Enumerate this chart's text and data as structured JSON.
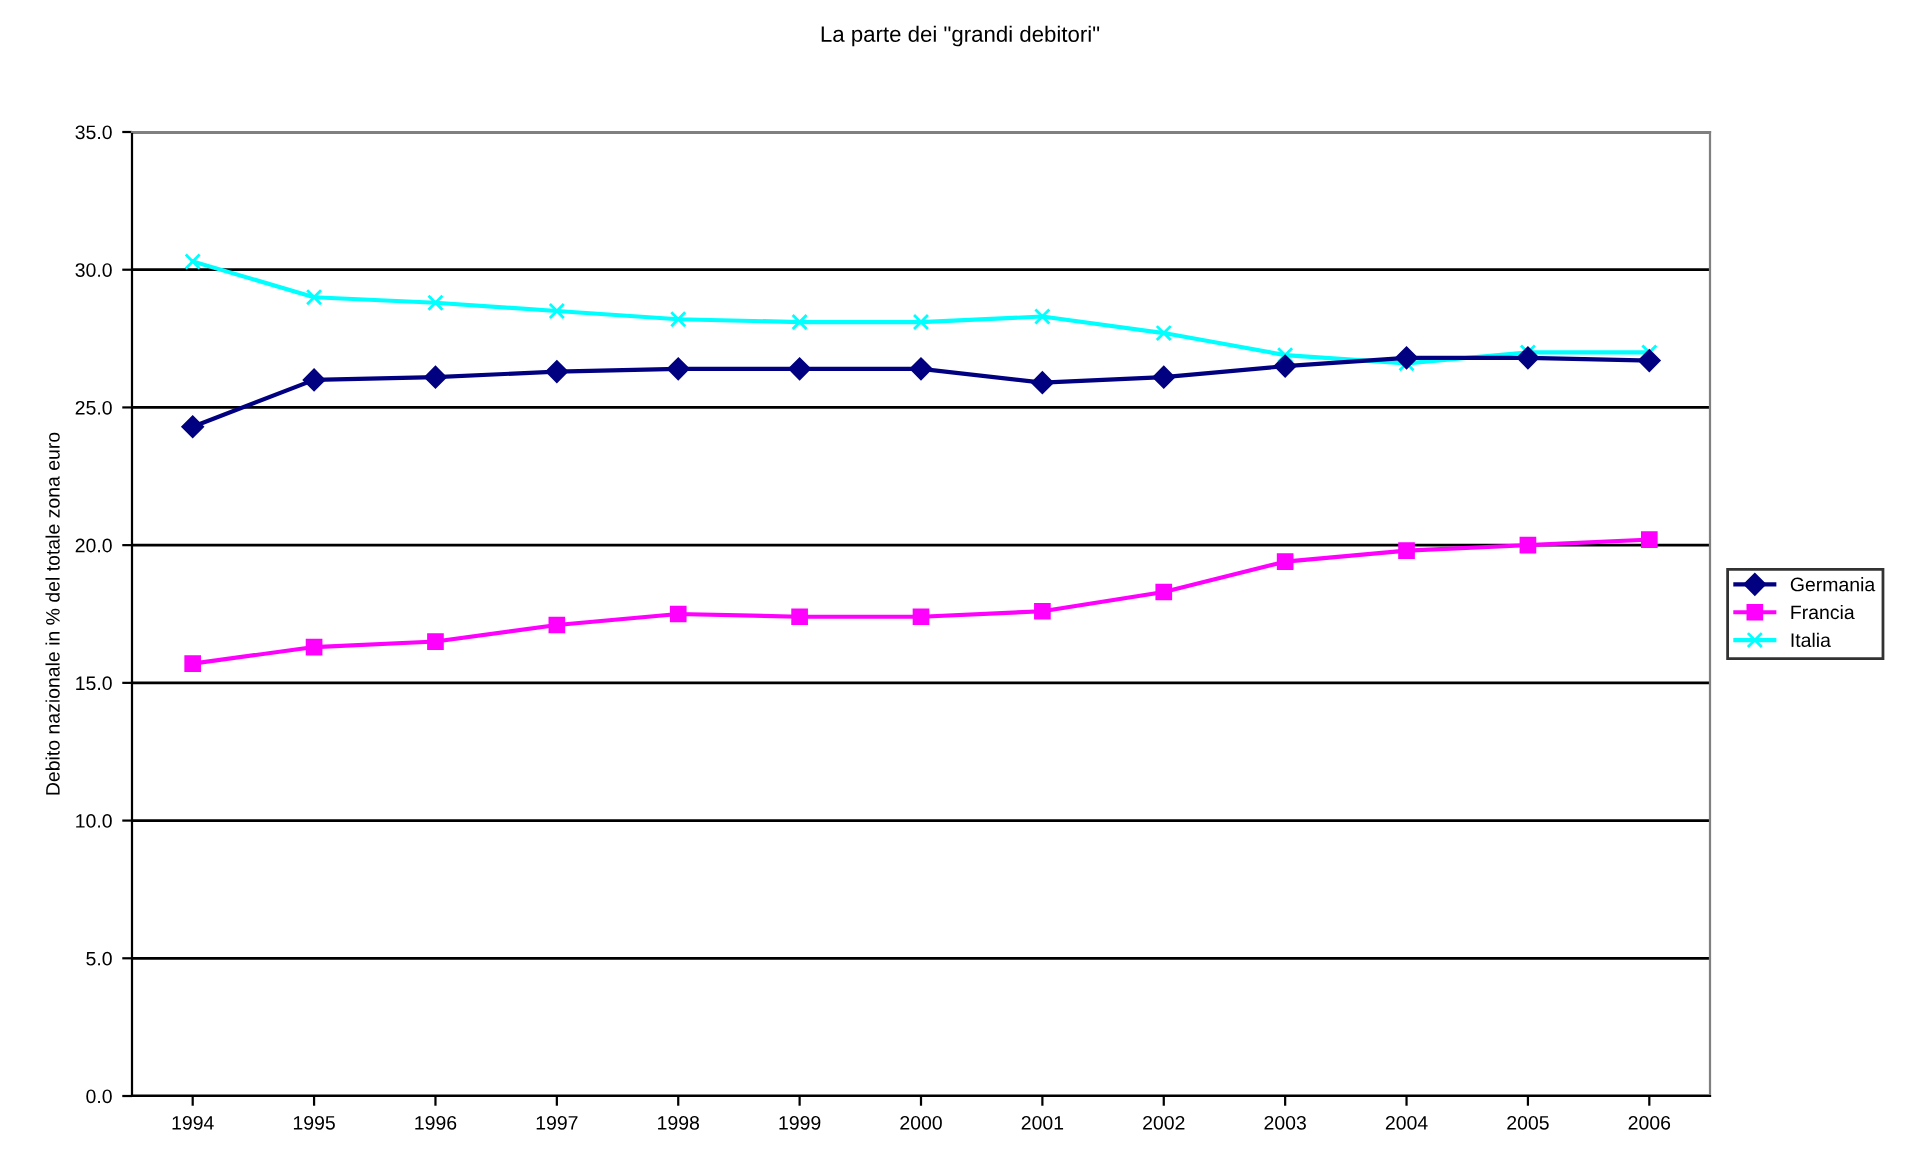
{
  "chart_data": {
    "type": "line",
    "title": "La parte dei \"grandi debitori\"",
    "ylabel": "Debito nazionale in % del totale zona euro",
    "categories": [
      "1994",
      "1995",
      "1996",
      "1997",
      "1998",
      "1999",
      "2000",
      "2001",
      "2002",
      "2003",
      "2004",
      "2005",
      "2006"
    ],
    "series": [
      {
        "name": "Germania",
        "color": "#000080",
        "marker": "diamond",
        "values": [
          24.3,
          26.0,
          26.1,
          26.3,
          26.4,
          26.4,
          26.4,
          25.9,
          26.1,
          26.5,
          26.8,
          26.8,
          26.7
        ]
      },
      {
        "name": "Francia",
        "color": "#ff00ff",
        "marker": "square",
        "values": [
          15.7,
          16.3,
          16.5,
          17.1,
          17.5,
          17.4,
          17.4,
          17.6,
          18.3,
          19.4,
          19.8,
          20.0,
          20.2
        ]
      },
      {
        "name": "Italia",
        "color": "#00ffff",
        "marker": "cross",
        "values": [
          30.3,
          29.0,
          28.8,
          28.5,
          28.2,
          28.1,
          28.1,
          28.3,
          27.7,
          26.9,
          26.6,
          27.0,
          27.0
        ]
      }
    ],
    "ylim": [
      0,
      35
    ],
    "yticks": [
      {
        "value": 0,
        "label": "0.0"
      },
      {
        "value": 5,
        "label": "5.0"
      },
      {
        "value": 10,
        "label": "10.0"
      },
      {
        "value": 15,
        "label": "15.0"
      },
      {
        "value": 20,
        "label": "20.0"
      },
      {
        "value": 25,
        "label": "25.0"
      },
      {
        "value": 30,
        "label": "30.0"
      },
      {
        "value": 35,
        "label": "35.0"
      }
    ],
    "grid": "y",
    "legend": "right",
    "line_style": "solid"
  }
}
